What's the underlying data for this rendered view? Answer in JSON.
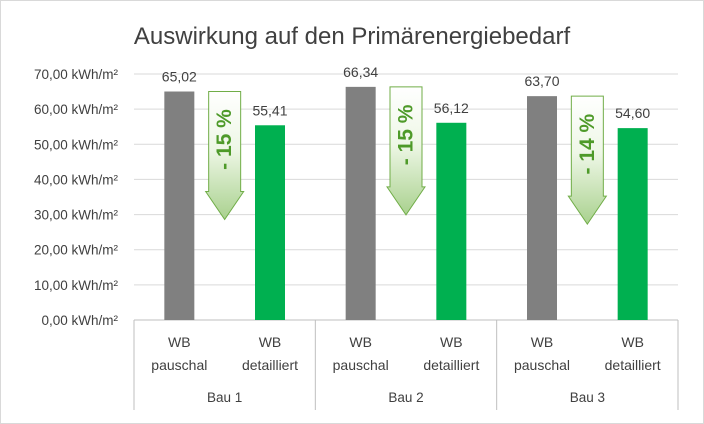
{
  "chart_data": {
    "type": "bar",
    "title": "Auswirkung auf den Primärenergiebedarf",
    "y_unit": "kWh/m²",
    "ylim": [
      0,
      70
    ],
    "y_ticks": [
      "0,00 kWh/m²",
      "10,00 kWh/m²",
      "20,00 kWh/m²",
      "30,00 kWh/m²",
      "40,00 kWh/m²",
      "50,00 kWh/m²",
      "60,00 kWh/m²",
      "70,00 kWh/m²"
    ],
    "grid": true,
    "groups": [
      {
        "label": "Bau 1",
        "reduction_label": "- 15 %",
        "bars": [
          {
            "category_line1": "WB",
            "category_line2": "pauschal",
            "value": 65.02,
            "value_label": "65,02",
            "color": "#808080"
          },
          {
            "category_line1": "WB",
            "category_line2": "detailliert",
            "value": 55.41,
            "value_label": "55,41",
            "color": "#00b050"
          }
        ]
      },
      {
        "label": "Bau 2",
        "reduction_label": "- 15 %",
        "bars": [
          {
            "category_line1": "WB",
            "category_line2": "pauschal",
            "value": 66.34,
            "value_label": "66,34",
            "color": "#808080"
          },
          {
            "category_line1": "WB",
            "category_line2": "detailliert",
            "value": 56.12,
            "value_label": "56,12",
            "color": "#00b050"
          }
        ]
      },
      {
        "label": "Bau 3",
        "reduction_label": "- 14 %",
        "bars": [
          {
            "category_line1": "WB",
            "category_line2": "pauschal",
            "value": 63.7,
            "value_label": "63,70",
            "color": "#808080"
          },
          {
            "category_line1": "WB",
            "category_line2": "detailliert",
            "value": 54.6,
            "value_label": "54,60",
            "color": "#00b050"
          }
        ]
      }
    ],
    "colors": {
      "pauschal": "#808080",
      "detailliert": "#00b050",
      "arrow_text": "#4e9a29",
      "arrow_border": "#70ad47"
    }
  }
}
